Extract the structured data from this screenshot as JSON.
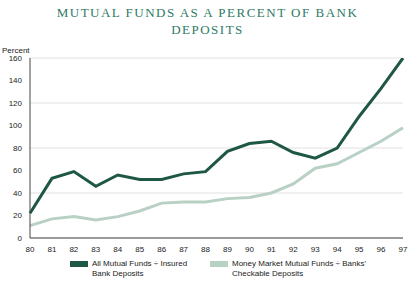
{
  "chart_data": {
    "type": "line",
    "title": "MUTUAL FUNDS AS A PERCENT OF BANK DEPOSITS",
    "y_label": "Percent",
    "categories": [
      "80",
      "81",
      "82",
      "83",
      "84",
      "85",
      "86",
      "87",
      "88",
      "89",
      "90",
      "91",
      "92",
      "93",
      "94",
      "95",
      "96",
      "97"
    ],
    "series": [
      {
        "name": "All Mutual Funds ÷ Insured Bank Deposits",
        "color": "#1f5747",
        "values": [
          22,
          53,
          59,
          46,
          56,
          52,
          52,
          57,
          59,
          77,
          84,
          86,
          76,
          71,
          80,
          108,
          133,
          160
        ]
      },
      {
        "name": "Money Market Mutual Funds ÷ Banks' Checkable Deposits",
        "color": "#b8d1c4",
        "values": [
          11,
          17,
          19,
          16,
          19,
          24,
          31,
          32,
          32,
          35,
          36,
          40,
          48,
          62,
          66,
          76,
          86,
          98
        ]
      }
    ],
    "ylim": [
      0,
      160
    ],
    "yticks": [
      0,
      20,
      40,
      60,
      80,
      100,
      120,
      140,
      160
    ],
    "grid": true
  }
}
